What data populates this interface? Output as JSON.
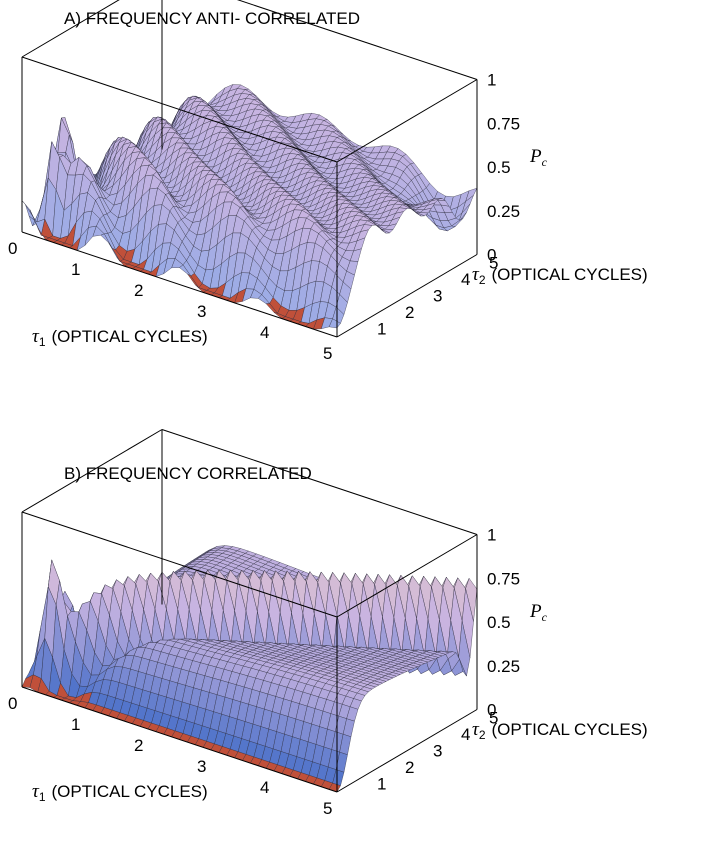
{
  "chart_data": [
    {
      "type": "surface",
      "title": "A) FREQUENCY ANTI- CORRELATED",
      "xlabel": {
        "symbol": "τ",
        "subscript": "1",
        "text": "(OPTICAL  CYCLES)"
      },
      "ylabel": {
        "symbol": "τ",
        "subscript": "2",
        "text": "(OPTICAL  CYCLES)"
      },
      "zlabel": {
        "symbol": "P",
        "subscript": "c"
      },
      "x_ticks": [
        "0",
        "1",
        "2",
        "3",
        "4",
        "5"
      ],
      "y_ticks": [
        "1",
        "2",
        "3",
        "4",
        "5"
      ],
      "z_ticks": [
        "0",
        "0.25",
        "0.5",
        "0.75",
        "1"
      ],
      "xlim": [
        0,
        5
      ],
      "ylim": [
        0,
        5
      ],
      "zlim": [
        0,
        1
      ],
      "mode": "anti-correlated"
    },
    {
      "type": "surface",
      "title": "B) FREQUENCY CORRELATED",
      "xlabel": {
        "symbol": "τ",
        "subscript": "1",
        "text": "(OPTICAL  CYCLES)"
      },
      "ylabel": {
        "symbol": "τ",
        "subscript": "2",
        "text": "(OPTICAL  CYCLES)"
      },
      "zlabel": {
        "symbol": "P",
        "subscript": "c"
      },
      "x_ticks": [
        "0",
        "1",
        "2",
        "3",
        "4",
        "5"
      ],
      "y_ticks": [
        "1",
        "2",
        "3",
        "4",
        "5"
      ],
      "z_ticks": [
        "0",
        "0.25",
        "0.5",
        "0.75",
        "1"
      ],
      "xlim": [
        0,
        5
      ],
      "ylim": [
        0,
        5
      ],
      "zlim": [
        0,
        1
      ],
      "mode": "correlated"
    }
  ]
}
